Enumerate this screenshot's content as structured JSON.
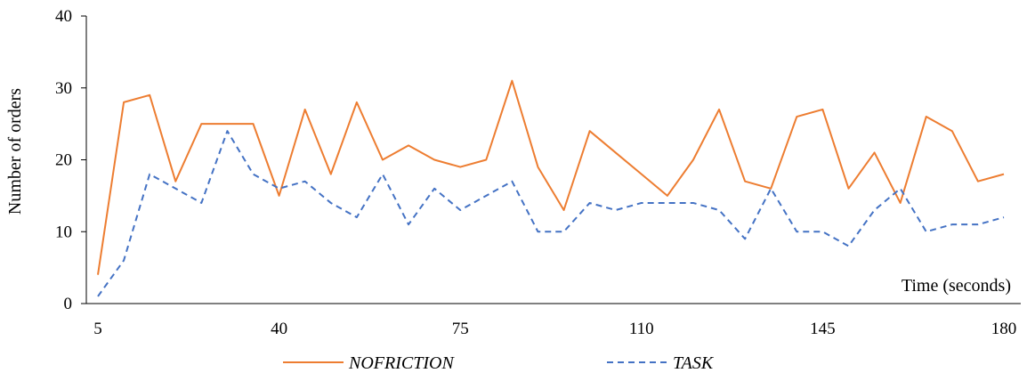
{
  "chart_data": {
    "type": "line",
    "xlabel": "Time (seconds)",
    "ylabel": "Number of orders",
    "xlim": [
      5,
      180
    ],
    "ylim": [
      0,
      40
    ],
    "x_ticks": [
      5,
      40,
      75,
      110,
      145,
      180
    ],
    "y_ticks": [
      0,
      10,
      20,
      30,
      40
    ],
    "grid": false,
    "legend_position": "bottom",
    "x": [
      5,
      10,
      15,
      20,
      25,
      30,
      35,
      40,
      45,
      50,
      55,
      60,
      65,
      70,
      75,
      80,
      85,
      90,
      95,
      100,
      105,
      110,
      115,
      120,
      125,
      130,
      135,
      140,
      145,
      150,
      155,
      160,
      165,
      170,
      175,
      180
    ],
    "series": [
      {
        "name": "NOFRICTION",
        "color": "#ED7D31",
        "style": "solid",
        "values": [
          4,
          28,
          29,
          17,
          25,
          25,
          25,
          15,
          27,
          18,
          28,
          20,
          22,
          20,
          19,
          20,
          31,
          19,
          13,
          24,
          21,
          18,
          15,
          20,
          27,
          17,
          16,
          26,
          27,
          16,
          21,
          14,
          26,
          24,
          17,
          18
        ]
      },
      {
        "name": "TASK",
        "color": "#4472C4",
        "style": "dashed",
        "values": [
          1,
          6,
          18,
          16,
          14,
          24,
          18,
          16,
          17,
          14,
          12,
          18,
          11,
          16,
          13,
          15,
          17,
          10,
          10,
          14,
          13,
          14,
          14,
          14,
          13,
          9,
          16,
          10,
          10,
          8,
          13,
          16,
          10,
          11,
          11,
          12
        ]
      }
    ]
  }
}
